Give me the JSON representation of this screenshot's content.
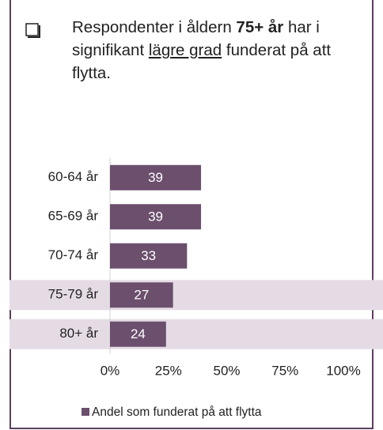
{
  "chart_data": {
    "type": "bar",
    "orientation": "horizontal",
    "annotation_parts": [
      "Respondenter i åldern",
      "75+ år",
      "har i signifikant",
      "lägre grad",
      "funderat på att flytta."
    ],
    "categories": [
      "60-64 år",
      "65-69 år",
      "70-74 år",
      "75-79 år",
      "80+ år"
    ],
    "series": [
      {
        "name": "Andel som funderat på att flytta",
        "color": "#6b4f6d",
        "values": [
          39,
          39,
          33,
          27,
          24
        ]
      }
    ],
    "highlight": [
      false,
      false,
      false,
      true,
      true
    ],
    "highlight_color": "#e5dbe5",
    "xlim": [
      0,
      100
    ],
    "xticks": [
      {
        "value": 0,
        "label": "0%"
      },
      {
        "value": 25,
        "label": "25%"
      },
      {
        "value": 50,
        "label": "50%"
      },
      {
        "value": 75,
        "label": "75%"
      },
      {
        "value": 100,
        "label": "100%"
      }
    ],
    "legend": "bottom"
  }
}
